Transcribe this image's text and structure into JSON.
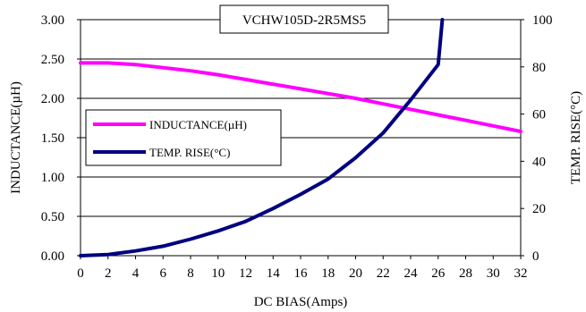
{
  "chart_data": {
    "type": "line",
    "title": "VCHW105D-2R5MS5",
    "xlabel": "DC BIAS(Amps)",
    "ylabel_left": "INDUCTANCE(µH)",
    "ylabel_right": "TEMP. RISE(°C)",
    "xlim": [
      0,
      32
    ],
    "ylim_left": [
      0,
      3
    ],
    "ylim_right": [
      0,
      100
    ],
    "x_ticks": [
      "0",
      "2",
      "4",
      "6",
      "8",
      "10",
      "12",
      "14",
      "16",
      "18",
      "20",
      "22",
      "24",
      "26",
      "28",
      "30",
      "32"
    ],
    "y_ticks_left": [
      "0.00",
      "0.50",
      "1.00",
      "1.50",
      "2.00",
      "2.50",
      "3.00"
    ],
    "y_ticks_right": [
      "0",
      "20",
      "40",
      "60",
      "80",
      "100"
    ],
    "grid": "horizontal",
    "legend_position": "center-left",
    "series": [
      {
        "name": "INDUCTANCE(µH)",
        "axis": "left",
        "color": "#ff00ff",
        "x": [
          0,
          2,
          4,
          6,
          8,
          10,
          12,
          14,
          16,
          18,
          20,
          22,
          24,
          26,
          28,
          30,
          32
        ],
        "y": [
          2.45,
          2.45,
          2.43,
          2.39,
          2.35,
          2.3,
          2.24,
          2.18,
          2.12,
          2.06,
          2.0,
          1.93,
          1.86,
          1.79,
          1.72,
          1.65,
          1.58
        ]
      },
      {
        "name": "TEMP. RISE(°C)",
        "axis": "right",
        "color": "#000080",
        "x": [
          0,
          2,
          4,
          6,
          8,
          10,
          12,
          14,
          16,
          18,
          20,
          22,
          24,
          26,
          26.3
        ],
        "y": [
          0,
          0.5,
          2,
          4,
          7,
          10.5,
          14.5,
          20,
          26,
          32.5,
          41.5,
          52,
          66,
          81,
          100
        ]
      }
    ]
  }
}
